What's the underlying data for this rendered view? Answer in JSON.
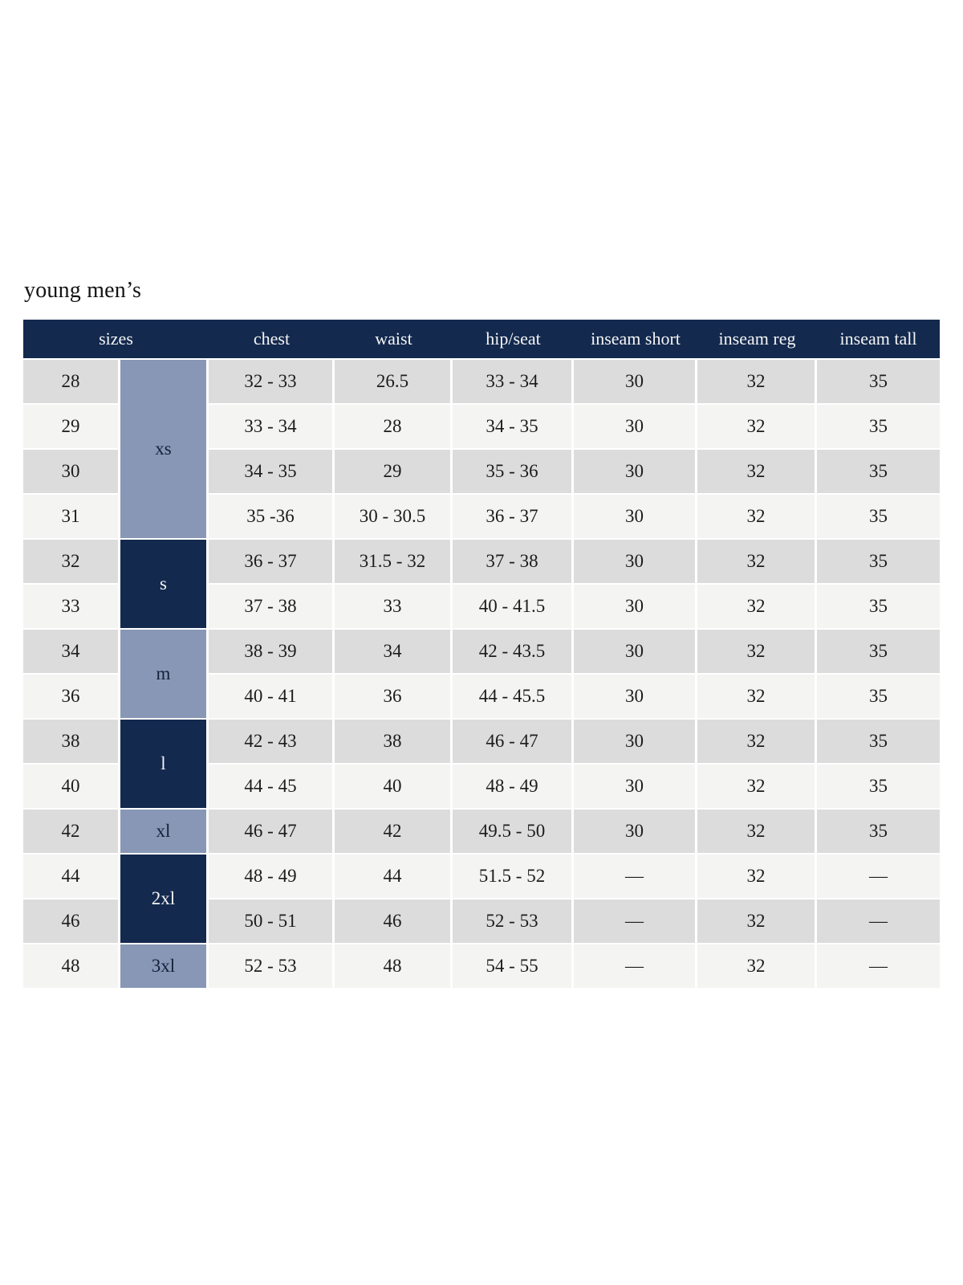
{
  "title": "young men’s",
  "colors": {
    "header_bg": "#13294e",
    "header_text": "#f5f5f5",
    "group_dark": "#13294e",
    "group_light": "#8897b6",
    "row_shade_dark": "#dcdcdc",
    "row_shade_light": "#f4f4f3",
    "body_text": "#1c1c1c"
  },
  "table": {
    "headers": [
      "sizes",
      "chest",
      "waist",
      "hip/seat",
      "inseam short",
      "inseam reg",
      "inseam tall"
    ],
    "size_groups": [
      {
        "label": "xs",
        "rows": 4,
        "variant": "light"
      },
      {
        "label": "s",
        "rows": 2,
        "variant": "dark"
      },
      {
        "label": "m",
        "rows": 2,
        "variant": "light"
      },
      {
        "label": "l",
        "rows": 2,
        "variant": "dark"
      },
      {
        "label": "xl",
        "rows": 1,
        "variant": "light"
      },
      {
        "label": "2xl",
        "rows": 2,
        "variant": "dark"
      },
      {
        "label": "3xl",
        "rows": 1,
        "variant": "light"
      }
    ],
    "rows": [
      {
        "size": "28",
        "chest": "32 - 33",
        "waist": "26.5",
        "hip_seat": "33 - 34",
        "inseam_short": "30",
        "inseam_reg": "32",
        "inseam_tall": "35"
      },
      {
        "size": "29",
        "chest": "33 - 34",
        "waist": "28",
        "hip_seat": "34 - 35",
        "inseam_short": "30",
        "inseam_reg": "32",
        "inseam_tall": "35"
      },
      {
        "size": "30",
        "chest": "34 - 35",
        "waist": "29",
        "hip_seat": "35 - 36",
        "inseam_short": "30",
        "inseam_reg": "32",
        "inseam_tall": "35"
      },
      {
        "size": "31",
        "chest": "35 -36",
        "waist": "30 - 30.5",
        "hip_seat": "36 - 37",
        "inseam_short": "30",
        "inseam_reg": "32",
        "inseam_tall": "35"
      },
      {
        "size": "32",
        "chest": "36 - 37",
        "waist": "31.5 - 32",
        "hip_seat": "37 - 38",
        "inseam_short": "30",
        "inseam_reg": "32",
        "inseam_tall": "35"
      },
      {
        "size": "33",
        "chest": "37 - 38",
        "waist": "33",
        "hip_seat": "40 - 41.5",
        "inseam_short": "30",
        "inseam_reg": "32",
        "inseam_tall": "35"
      },
      {
        "size": "34",
        "chest": "38 - 39",
        "waist": "34",
        "hip_seat": "42 - 43.5",
        "inseam_short": "30",
        "inseam_reg": "32",
        "inseam_tall": "35"
      },
      {
        "size": "36",
        "chest": "40 - 41",
        "waist": "36",
        "hip_seat": "44 - 45.5",
        "inseam_short": "30",
        "inseam_reg": "32",
        "inseam_tall": "35"
      },
      {
        "size": "38",
        "chest": "42 - 43",
        "waist": "38",
        "hip_seat": "46 - 47",
        "inseam_short": "30",
        "inseam_reg": "32",
        "inseam_tall": "35"
      },
      {
        "size": "40",
        "chest": "44 - 45",
        "waist": "40",
        "hip_seat": "48 - 49",
        "inseam_short": "30",
        "inseam_reg": "32",
        "inseam_tall": "35"
      },
      {
        "size": "42",
        "chest": "46 - 47",
        "waist": "42",
        "hip_seat": "49.5 - 50",
        "inseam_short": "30",
        "inseam_reg": "32",
        "inseam_tall": "35"
      },
      {
        "size": "44",
        "chest": "48 - 49",
        "waist": "44",
        "hip_seat": "51.5 - 52",
        "inseam_short": "—",
        "inseam_reg": "32",
        "inseam_tall": "—"
      },
      {
        "size": "46",
        "chest": "50 - 51",
        "waist": "46",
        "hip_seat": "52 - 53",
        "inseam_short": "—",
        "inseam_reg": "32",
        "inseam_tall": "—"
      },
      {
        "size": "48",
        "chest": "52 - 53",
        "waist": "48",
        "hip_seat": "54 - 55",
        "inseam_short": "—",
        "inseam_reg": "32",
        "inseam_tall": "—"
      }
    ]
  }
}
